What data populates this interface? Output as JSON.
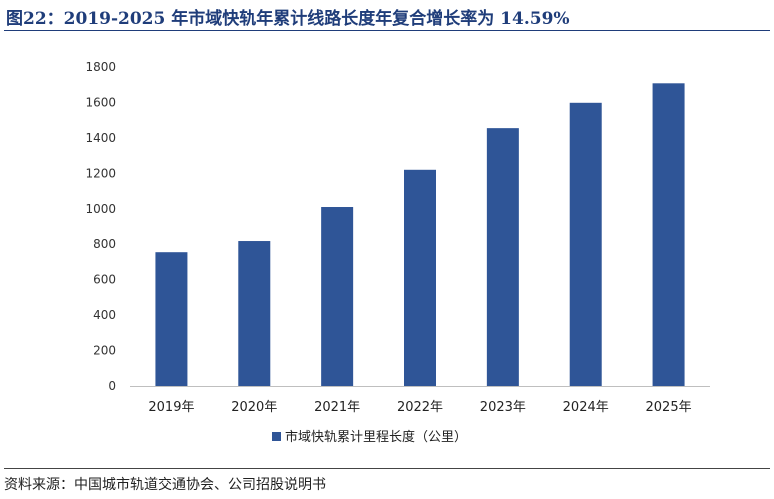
{
  "header": {
    "title": "图22：2019-2025 年市域快轨年累计线路长度年复合增长率为 14.59%"
  },
  "footer": {
    "source": "资料来源：中国城市轨道交通协会、公司招股说明书"
  },
  "colors": {
    "bar": "#2f5597",
    "title": "#1f3d7a",
    "axis": "#bfbfbf"
  },
  "chart_data": {
    "type": "bar",
    "categories": [
      "2019年",
      "2020年",
      "2021年",
      "2022年",
      "2023年",
      "2024年",
      "2025年"
    ],
    "series": [
      {
        "name": "市域快轨累计里程长度（公里）",
        "values": [
          755,
          818,
          1010,
          1220,
          1455,
          1598,
          1708
        ]
      }
    ],
    "yticks": [
      0,
      200,
      400,
      600,
      800,
      1000,
      1200,
      1400,
      1600,
      1800
    ],
    "ylim": [
      0,
      1800
    ],
    "grid": false,
    "legend": "bottom"
  }
}
